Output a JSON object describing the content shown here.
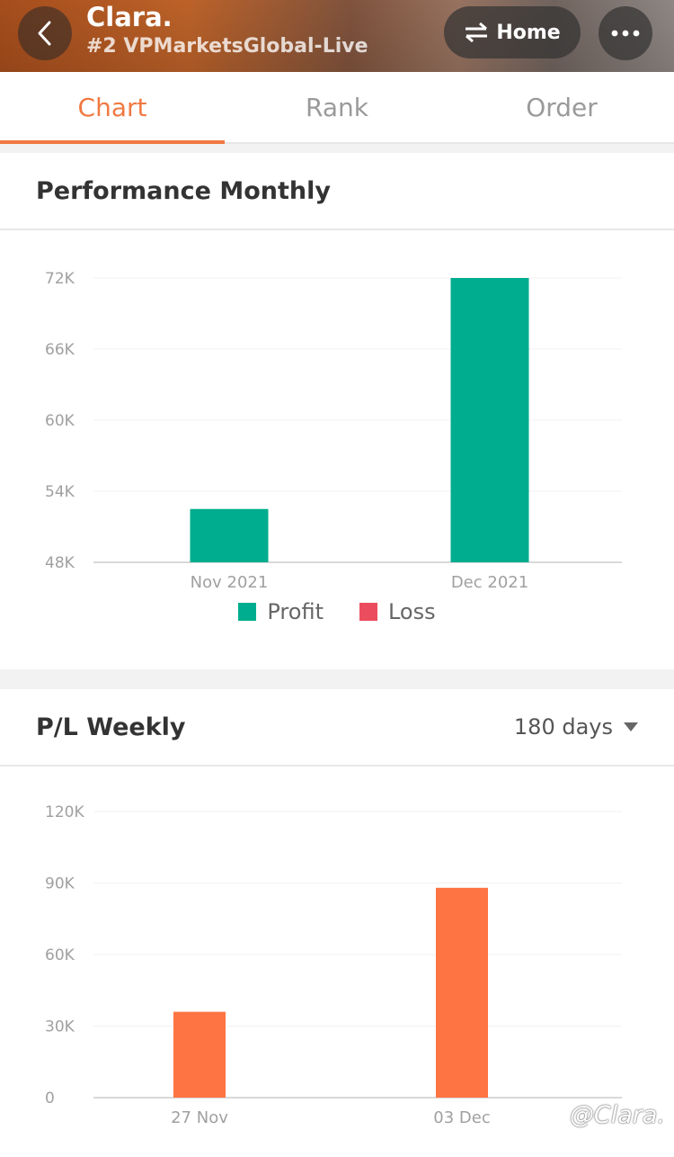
{
  "header": {
    "title": "Clara.",
    "subtitle": "#2 VPMarketsGlobal-Live",
    "home_label": "Home"
  },
  "tabs": [
    {
      "label": "Chart",
      "active": true
    },
    {
      "label": "Rank",
      "active": false
    },
    {
      "label": "Order",
      "active": false
    }
  ],
  "performance": {
    "title": "Performance Monthly",
    "legend": [
      {
        "label": "Profit",
        "color": "#00ad8e"
      },
      {
        "label": "Loss",
        "color": "#ec4d5e"
      }
    ]
  },
  "weekly": {
    "title": "P/L Weekly",
    "range_label": "180 days"
  },
  "watermark": "@Clara.",
  "chart_data": [
    {
      "type": "bar",
      "title": "Performance Monthly",
      "categories": [
        "Nov 2021",
        "Dec 2021"
      ],
      "series": [
        {
          "name": "Profit",
          "values": [
            52500,
            72000
          ],
          "color": "#00ad8e"
        }
      ],
      "yticks": [
        "48K",
        "54K",
        "60K",
        "66K",
        "72K"
      ],
      "ylim": [
        48000,
        72000
      ],
      "grid": true,
      "legend": "bottom"
    },
    {
      "type": "bar",
      "title": "P/L Weekly",
      "categories": [
        "27 Nov",
        "03 Dec"
      ],
      "series": [
        {
          "values": [
            36000,
            88000
          ],
          "color": "#ff7443"
        }
      ],
      "yticks": [
        "0",
        "30K",
        "60K",
        "90K",
        "120K"
      ],
      "ylim": [
        0,
        120000
      ],
      "grid": true
    }
  ]
}
